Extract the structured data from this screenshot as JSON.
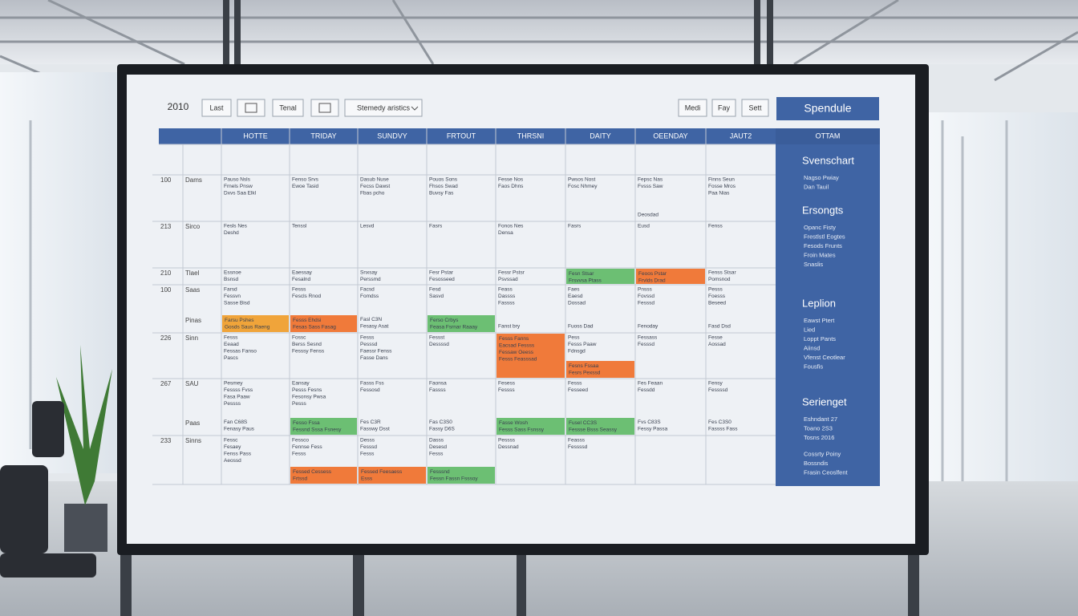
{
  "toolbar": {
    "year": "2010",
    "buttons": [
      "Last",
      "Tenal"
    ],
    "dropdown": "Stemedy aristics",
    "right": [
      "Medi",
      "Fay",
      "Sett"
    ],
    "primary": "Spendule"
  },
  "table": {
    "columns": [
      "HOTTE",
      "TRIDAY",
      "SUNDVY",
      "FRTOUT",
      "THRSNI",
      "DAITY",
      "OEENDAY",
      "JAUT2"
    ],
    "rows": [
      {
        "time": "100",
        "label": "Dams",
        "cells": [
          {
            "lines": [
              "Pauso Nsls",
              "Frnels Pnsw",
              "Dxvs Saa Elkl"
            ]
          },
          {
            "lines": [
              "Fenso Srvs",
              "Ewoe Tasid"
            ]
          },
          {
            "lines": [
              "Dasub Nuse",
              "Fecss Dawst",
              "Fbas pcho"
            ]
          },
          {
            "lines": [
              "Pouos Sons",
              "Fhsos Swad",
              "Buvsy Fas"
            ]
          },
          {
            "lines": [
              "Fesse Nos",
              "Faos Dhns"
            ]
          },
          {
            "lines": [
              "Pwsos Nost",
              "Fosc Nhmey"
            ]
          },
          {
            "lines": [
              "Fepsc Nas",
              "Fvsss Saw"
            ],
            "foot": [
              "Deosdad"
            ]
          },
          {
            "lines": [
              "Finns Seun",
              "Fosse Mros",
              "Paa Nias"
            ]
          }
        ]
      },
      {
        "time": "213",
        "label": "Sirco",
        "cells": [
          {
            "lines": [
              "Fesls Nes",
              "Deshd"
            ]
          },
          {
            "lines": [
              "Tenssl"
            ]
          },
          {
            "lines": [
              "Lesvd"
            ]
          },
          {
            "lines": [
              "Fasrs"
            ]
          },
          {
            "lines": [
              "Fonos Nes",
              "Densa"
            ]
          },
          {
            "lines": [
              "Fasrs"
            ]
          },
          {
            "lines": [
              "Eusd"
            ]
          },
          {
            "lines": [
              "Fenss"
            ]
          }
        ]
      },
      {
        "time": "210",
        "label": "Tlael",
        "cells": [
          {
            "lines": [
              "Essnoe",
              "Bsnsd"
            ]
          },
          {
            "lines": [
              "Eaessay",
              "Fesalnd"
            ]
          },
          {
            "lines": [
              "Snxsay",
              "Perssmd"
            ]
          },
          {
            "lines": [
              "Fesr Pstar",
              "Fesosseed"
            ]
          },
          {
            "lines": [
              "Fessr Pstsr",
              "Psvssad"
            ]
          },
          {
            "lines": [],
            "event": {
              "lines": [
                "Fesn Stsar",
                "Frsvvsa Ptass"
              ],
              "color": "#6cbf73"
            }
          },
          {
            "lines": [],
            "event": {
              "lines": [
                "Feoos Pstar",
                "Frvlds Drad"
              ],
              "color": "#f07a3a"
            }
          },
          {
            "lines": [
              "Fenss Stsar",
              "Pomsnod"
            ]
          }
        ]
      },
      {
        "time": "100",
        "label": "Saas",
        "sub": "Pinas",
        "cells": [
          {
            "lines": [
              "Farsd",
              "Fessvn",
              "Sasse Bisd"
            ],
            "event": {
              "lines": [
                "Farsu Pshes",
                "Gosds Saus Raeng"
              ],
              "color": "#f0a43a"
            }
          },
          {
            "lines": [
              "Fesss",
              "Fescls Rnod"
            ],
            "event": {
              "lines": [
                "Fesss Ehdsi",
                "Fesas Sass Fasag"
              ],
              "color": "#f07a3a"
            }
          },
          {
            "lines": [
              "Facsd",
              "Fomdss"
            ],
            "foot": [
              "Fasl C3N",
              "Fesasy Asat"
            ]
          },
          {
            "lines": [
              "Fesd",
              "Sasvd"
            ],
            "event": {
              "lines": [
                "Ferso Crbys",
                "Feasa Fsrnar Raaay"
              ],
              "color": "#6cbf73"
            }
          },
          {
            "lines": [
              "Feass",
              "Dassss",
              "Fassss"
            ],
            "foot": [
              "Fanst bry"
            ]
          },
          {
            "lines": [
              "Faes",
              "Eaesd",
              "Dossad"
            ],
            "foot": [
              "Fuoss Dad"
            ]
          },
          {
            "lines": [
              "Pnsss",
              "Fovssd",
              "Fesssd"
            ],
            "foot": [
              "Fenoday"
            ]
          },
          {
            "lines": [
              "Pesss",
              "Foesss",
              "Beseed"
            ],
            "foot": [
              "Fasd Dsd"
            ]
          }
        ]
      },
      {
        "time": "226",
        "label": "Sinn",
        "cells": [
          {
            "lines": [
              "Fesss",
              "Eeaad",
              "Fessas Fanso",
              "Pascs"
            ]
          },
          {
            "lines": [
              "Fossc",
              "Berss Sesnd",
              "Fesssy Fenss"
            ]
          },
          {
            "lines": [
              "Fesss",
              "Pesssd",
              "Faessr Fenss",
              "Fasse Dans"
            ]
          },
          {
            "lines": [
              "Fessst",
              "Dessssd"
            ]
          },
          {
            "lines": [],
            "event": {
              "lines": [
                "Fesss Fanns",
                "Eacsad Fessss",
                "Fessaw Oeess",
                "Fesss Feasssad"
              ],
              "color": "#f07a3a"
            }
          },
          {
            "lines": [
              "Pess",
              "Fesss Paaw",
              "Fdnsgd"
            ],
            "event": {
              "lines": [
                "Fesns Fssaa",
                "Fesrs Pexssd"
              ],
              "color": "#f07a3a"
            }
          },
          {
            "lines": [
              "Fessass",
              "Fesssd"
            ]
          },
          {
            "lines": [
              "Fesse",
              "Aossad"
            ]
          }
        ]
      },
      {
        "time": "267",
        "label": "SAU",
        "sub": "Paas",
        "cells": [
          {
            "lines": [
              "Pesmey",
              "Fessss Fvss",
              "Fasa Paaw",
              "Pessss"
            ],
            "foot": [
              "Fan C68S",
              "Fenasy Paus"
            ]
          },
          {
            "lines": [
              "Eansay",
              "Pesss Fesns",
              "Fesonsy Pwsa",
              "Pesss"
            ],
            "event": {
              "lines": [
                "Fesso Fssa",
                "Fessnd Sssa Fsnesy"
              ],
              "color": "#6cbf73"
            }
          },
          {
            "lines": [
              "Fasss Fss",
              "Fessosd"
            ],
            "foot": [
              "Fes C3R",
              "Fasswy Dsst"
            ]
          },
          {
            "lines": [
              "Faonsa",
              "Fassss"
            ],
            "foot": [
              "Fas C3S0",
              "Fassy D6S"
            ]
          },
          {
            "lines": [
              "Fesess",
              "Fessss"
            ],
            "event": {
              "lines": [
                "Fasse Wosh",
                "Fesss Sass Fsnssy"
              ],
              "color": "#6cbf73"
            }
          },
          {
            "lines": [
              "Fesss",
              "Fesseed"
            ],
            "event": {
              "lines": [
                "Fusel CC3S",
                "Fessse Bsss Seassy"
              ],
              "color": "#6cbf73"
            }
          },
          {
            "lines": [
              "Fes Feaan",
              "Fessdd"
            ],
            "foot": [
              "Fvs C83S",
              "Fessy Passa"
            ]
          },
          {
            "lines": [
              "Fensy",
              "Fessssd"
            ],
            "foot": [
              "Fes C3S0",
              "Fassss Fass"
            ]
          }
        ]
      },
      {
        "time": "233",
        "label": "Sinns",
        "cells": [
          {
            "lines": [
              "Fessc",
              "Fesaey",
              "Fenss Pass",
              "Aeossd"
            ]
          },
          {
            "lines": [
              "Fessco",
              "Fennse Fess",
              "Fesss"
            ],
            "event": {
              "lines": [
                "Fessed Cessess",
                "Frtssd"
              ],
              "color": "#f07a3a"
            }
          },
          {
            "lines": [
              "Desss",
              "Fesssd",
              "Fesss"
            ],
            "event": {
              "lines": [
                "Fessed Feesaess",
                "Esss"
              ],
              "color": "#f07a3a"
            }
          },
          {
            "lines": [
              "Dasss",
              "Desesd",
              "Fesss"
            ],
            "event": {
              "lines": [
                "Fesssnd",
                "Fessn Fassn Fsssoy"
              ],
              "color": "#6cbf73"
            }
          },
          {
            "lines": [
              "Pessss",
              "Dessnad"
            ]
          },
          {
            "lines": [
              "Feasss",
              "Fessssd"
            ]
          },
          {
            "lines": []
          },
          {
            "lines": []
          }
        ]
      }
    ]
  },
  "sidebar": {
    "header": "OTTAM",
    "sections": [
      {
        "title": "Svenschart",
        "lines": [
          "Nagso Pwiay",
          "Dan Tauil"
        ]
      },
      {
        "title": "Ersongts",
        "lines": [
          "Opanc Fisty",
          "Frestlstl Eogtes",
          "Fesods Frunts",
          "Froin Mates",
          "Snaslis"
        ]
      },
      {
        "title": "Leplion",
        "lines": [
          "Eawst Ptert",
          "Lied",
          "Loppt Pants",
          "Aiinsd",
          "Vfenst Ceotlear",
          "Fousfis"
        ]
      },
      {
        "title": "Serienget",
        "lines": [
          "Eshndant  27",
          "Toano  2S3",
          "Tosns  2016",
          "Cossrty Poiny",
          "Bossndis",
          "Frasin Ceoslfent"
        ]
      }
    ]
  }
}
